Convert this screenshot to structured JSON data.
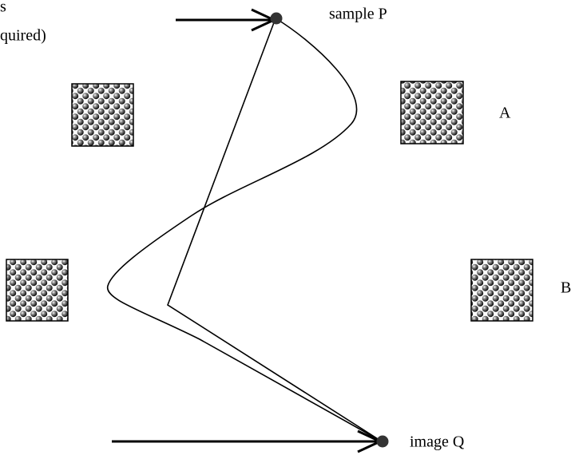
{
  "notes": [
    "s",
    "quired)"
  ],
  "points": [
    {
      "label": "sample P"
    },
    {
      "label": "image Q"
    }
  ],
  "crystals": [
    {
      "label": "A"
    },
    {
      "label": "B"
    }
  ]
}
